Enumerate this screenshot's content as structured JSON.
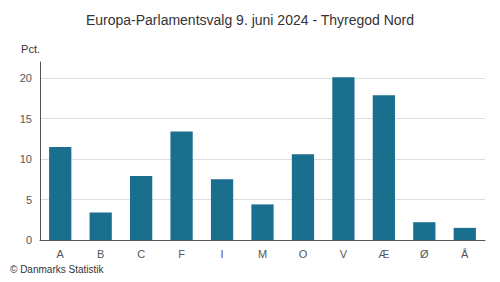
{
  "chart_data": {
    "type": "bar",
    "title": "Europa-Parlamentsvalg 9. juni 2024 - Thyregod Nord",
    "ylabel": "Pct.",
    "annotations": [
      "© Danmarks Statistik"
    ],
    "categories": [
      "A",
      "B",
      "C",
      "F",
      "I",
      "M",
      "O",
      "V",
      "Æ",
      "Ø",
      "Å"
    ],
    "values": [
      11.5,
      3.4,
      7.9,
      13.4,
      7.5,
      4.4,
      10.6,
      20.1,
      17.9,
      2.2,
      1.5
    ],
    "color": "#1a6e8e",
    "ylim": [
      0,
      22
    ],
    "yticks": [
      0,
      5,
      10,
      15,
      20
    ],
    "grid": true
  }
}
